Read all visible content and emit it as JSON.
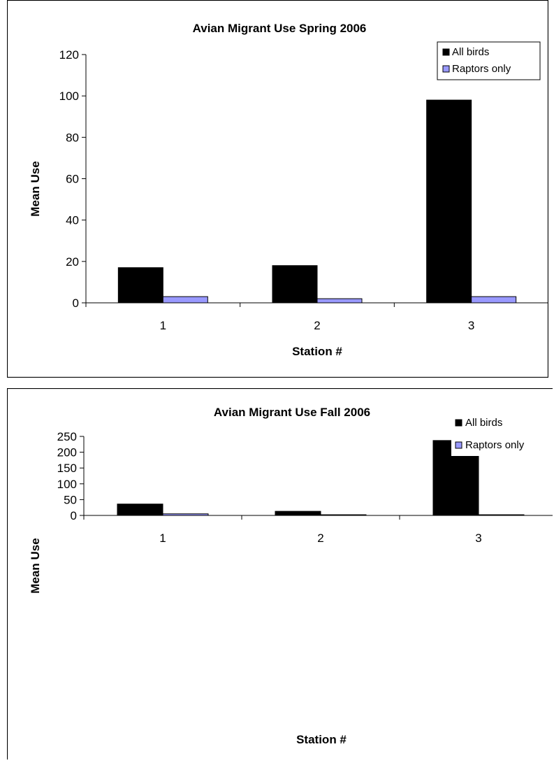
{
  "chart_data": [
    {
      "type": "bar",
      "title": "Avian Migrant Use Spring 2006",
      "xlabel": "Station #",
      "ylabel": "Mean Use",
      "categories": [
        "1",
        "2",
        "3"
      ],
      "series": [
        {
          "name": "All birds",
          "values": [
            17,
            18,
            98
          ],
          "color": "#000000"
        },
        {
          "name": "Raptors only",
          "values": [
            3,
            2,
            3
          ],
          "color": "#9999FF"
        }
      ],
      "ylim": [
        0,
        120
      ],
      "yticks": [
        "0",
        "20",
        "40",
        "60",
        "80",
        "100",
        "120"
      ],
      "grid": false,
      "legend": "top-right"
    },
    {
      "type": "bar",
      "title": "Avian Migrant Use Fall 2006",
      "xlabel": "Station #",
      "ylabel": "Mean Use",
      "categories": [
        "1",
        "2",
        "3"
      ],
      "series": [
        {
          "name": "All birds",
          "values": [
            36,
            13,
            237
          ],
          "color": "#000000"
        },
        {
          "name": "Raptors only",
          "values": [
            5,
            2,
            2
          ],
          "color": "#9999FF"
        }
      ],
      "ylim": [
        0,
        250
      ],
      "yticks": [
        "0",
        "50",
        "100",
        "150",
        "200",
        "250"
      ],
      "grid": false,
      "legend": "top-right"
    }
  ]
}
